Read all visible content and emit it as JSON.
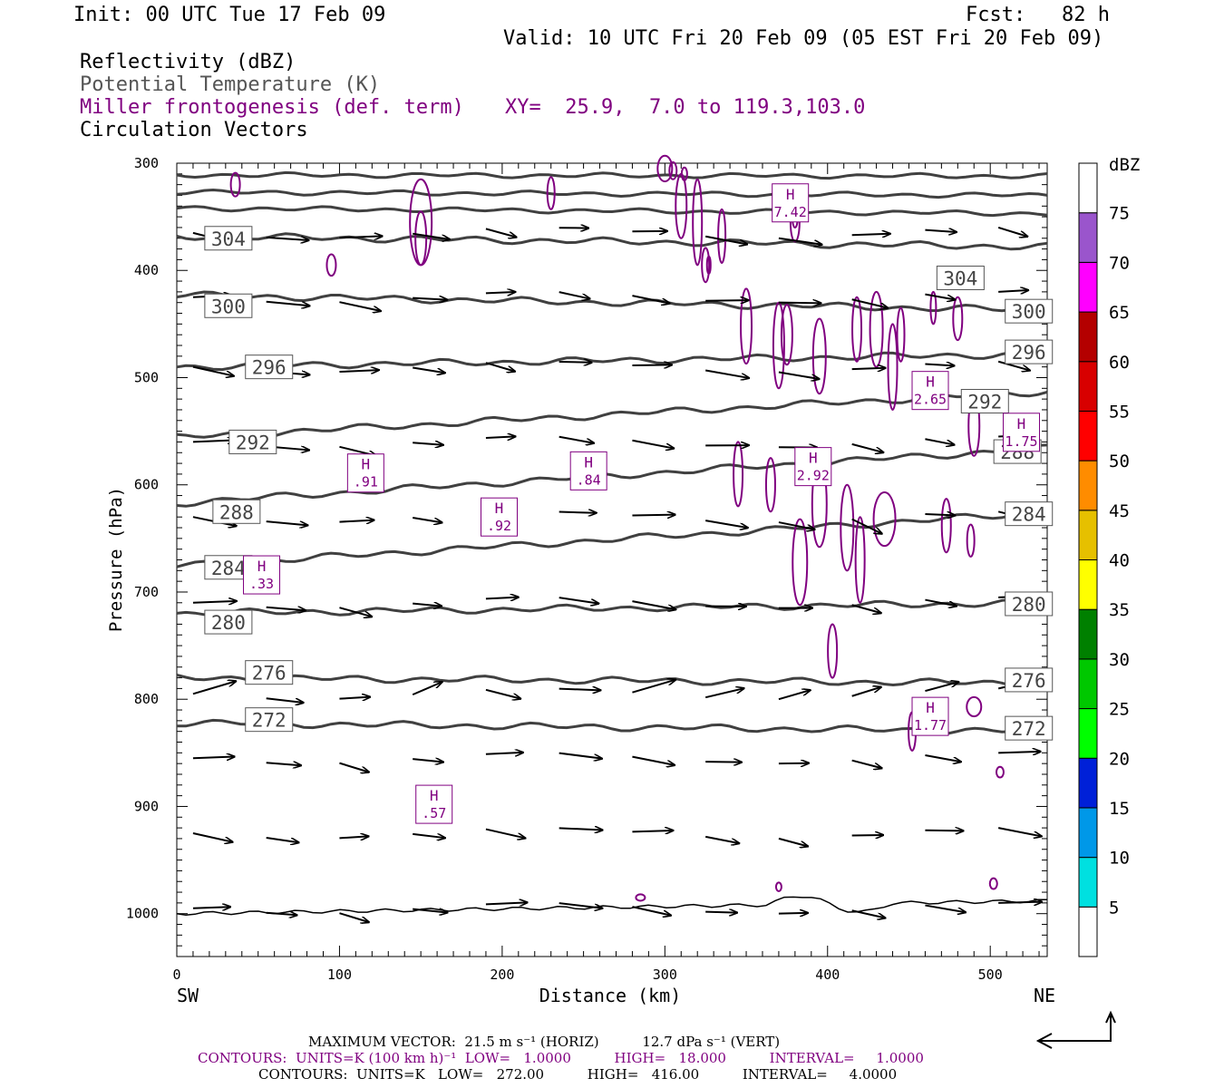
{
  "header": {
    "init": "Init: 00 UTC Tue 17 Feb 09",
    "fcst": "Fcst:   82 h",
    "valid": "Valid: 10 UTC Fri 20 Feb 09 (05 EST Fri 20 Feb 09)",
    "field1": "Reflectivity (dBZ)",
    "field2": "Potential Temperature (K)",
    "field3": "Miller frontogenesis (def. term)",
    "xy": "XY=  25.9,  7.0 to 119.3,103.0",
    "field4": "Circulation Vectors"
  },
  "chart_data": {
    "type": "contour",
    "xlabel": "Distance (km)",
    "ylabel": "Pressure (hPa)",
    "x_left_label": "SW",
    "x_right_label": "NE",
    "xlim": [
      0,
      535
    ],
    "ylim": [
      1040,
      300
    ],
    "x_ticks": [
      0,
      100,
      200,
      300,
      400,
      500
    ],
    "y_ticks": [
      300,
      400,
      500,
      600,
      700,
      800,
      900,
      1000
    ],
    "theta_contours": [
      {
        "value": 304,
        "left_p": 368,
        "right_p": 378,
        "labels": [
          {
            "x": 20,
            "p": 370,
            "text": "304"
          },
          {
            "x": 470,
            "p": 407,
            "text": "304"
          }
        ]
      },
      {
        "value": 300,
        "left_p": 423,
        "right_p": 437,
        "labels": [
          {
            "x": 20,
            "p": 433,
            "text": "300"
          },
          {
            "x": 512,
            "p": 438,
            "text": "300"
          }
        ]
      },
      {
        "value": 296,
        "left_p": 490,
        "right_p": 478,
        "labels": [
          {
            "x": 45,
            "p": 490,
            "text": "296"
          },
          {
            "x": 512,
            "p": 476,
            "text": "296"
          }
        ]
      },
      {
        "value": 292,
        "left_p": 556,
        "right_p": 513,
        "labels": [
          {
            "x": 35,
            "p": 560,
            "text": "292"
          },
          {
            "x": 485,
            "p": 522,
            "text": "292"
          }
        ]
      },
      {
        "value": 288,
        "left_p": 617,
        "right_p": 566,
        "labels": [
          {
            "x": 25,
            "p": 625,
            "text": "288"
          },
          {
            "x": 505,
            "p": 569,
            "text": "288"
          }
        ]
      },
      {
        "value": 284,
        "left_p": 676,
        "right_p": 626,
        "labels": [
          {
            "x": 20,
            "p": 677,
            "text": "284"
          },
          {
            "x": 512,
            "p": 627,
            "text": "284"
          }
        ]
      },
      {
        "value": 280,
        "left_p": 720,
        "right_p": 710,
        "labels": [
          {
            "x": 20,
            "p": 728,
            "text": "280"
          },
          {
            "x": 512,
            "p": 711,
            "text": "280"
          }
        ]
      },
      {
        "value": 276,
        "left_p": 780,
        "right_p": 785,
        "labels": [
          {
            "x": 45,
            "p": 775,
            "text": "276"
          },
          {
            "x": 512,
            "p": 782,
            "text": "276"
          }
        ]
      },
      {
        "value": 272,
        "left_p": 822,
        "right_p": 830,
        "labels": [
          {
            "x": 45,
            "p": 819,
            "text": "272"
          },
          {
            "x": 512,
            "p": 827,
            "text": "272"
          }
        ]
      }
    ],
    "frontogenesis_maxima": [
      {
        "x": 376,
        "p": 337,
        "text": "7.42"
      },
      {
        "x": 462,
        "p": 512,
        "text": "2.65"
      },
      {
        "x": 518,
        "p": 551,
        "text": "1.75"
      },
      {
        "x": 390,
        "p": 583,
        "text": "2.92"
      },
      {
        "x": 115,
        "p": 589,
        "text": ".91"
      },
      {
        "x": 252,
        "p": 587,
        "text": ".84"
      },
      {
        "x": 197,
        "p": 630,
        "text": ".92"
      },
      {
        "x": 51,
        "p": 684,
        "text": ".33"
      },
      {
        "x": 462,
        "p": 816,
        "text": "1.77"
      },
      {
        "x": 157,
        "p": 898,
        "text": ".57"
      }
    ],
    "colorbar": {
      "title": "dBZ",
      "levels": [
        "5",
        "10",
        "15",
        "20",
        "25",
        "30",
        "35",
        "40",
        "45",
        "50",
        "55",
        "60",
        "65",
        "70",
        "75"
      ],
      "colors": [
        "#ffffff",
        "#00e0e0",
        "#0098e8",
        "#0020d8",
        "#00ff00",
        "#00c800",
        "#008000",
        "#ffff00",
        "#e6c000",
        "#ff8c00",
        "#ff0000",
        "#d80000",
        "#b40000",
        "#ff00ff",
        "#9a55cc",
        "#ffffff"
      ]
    }
  },
  "footer": {
    "line1": "MAXIMUM VECTOR:  21.5 m s⁻¹ (HORIZ)          12.7 dPa s⁻¹ (VERT)",
    "line2": "CONTOURS:  UNITS=K (100 km h)⁻¹  LOW=   1.0000          HIGH=   18.000          INTERVAL=     1.0000",
    "line3": "CONTOURS:  UNITS=K   LOW=   272.00          HIGH=   416.00          INTERVAL=     4.0000"
  },
  "colors": {
    "theta": "#404040",
    "frontogenesis": "#800080",
    "vectors": "#000000"
  }
}
